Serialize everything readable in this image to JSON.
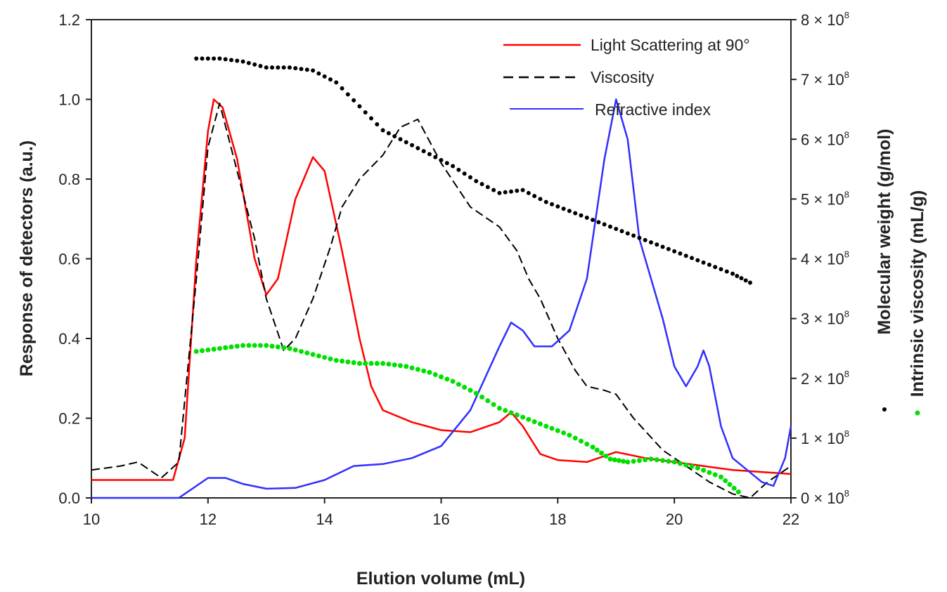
{
  "chart_data": {
    "type": "line",
    "xlabel": "Elution volume (mL)",
    "ylabel": "Response of detectors (a.u.)",
    "y2labels": [
      "Molecular weight (g/mol)",
      "Intrinsic viscosity (mL/g)"
    ],
    "xlim": [
      10,
      22
    ],
    "ylim": [
      0.0,
      1.2
    ],
    "y2lim": [
      0,
      8
    ],
    "xticks": [
      "10",
      "12",
      "14",
      "16",
      "18",
      "20",
      "22"
    ],
    "yticks": [
      "0.0",
      "0.2",
      "0.4",
      "0.6",
      "0.8",
      "1.0",
      "1.2"
    ],
    "y2ticks": [
      {
        "base": "0 × 10",
        "exp": "8"
      },
      {
        "base": "1 × 10",
        "exp": "8"
      },
      {
        "base": "2 × 10",
        "exp": "8"
      },
      {
        "base": "3 × 10",
        "exp": "8"
      },
      {
        "base": "4 × 10",
        "exp": "8"
      },
      {
        "base": "5 × 10",
        "exp": "8"
      },
      {
        "base": "6 × 10",
        "exp": "8"
      },
      {
        "base": "7 × 10",
        "exp": "8"
      },
      {
        "base": "8 × 10",
        "exp": "8"
      }
    ],
    "legend_position": "top-right",
    "grid": false,
    "series": [
      {
        "name": "Light Scattering at 90°",
        "color": "#ff0000",
        "style": "solid",
        "axis": "left",
        "points": [
          [
            10.0,
            0.045
          ],
          [
            11.4,
            0.045
          ],
          [
            11.6,
            0.15
          ],
          [
            11.8,
            0.6
          ],
          [
            12.0,
            0.92
          ],
          [
            12.1,
            1.0
          ],
          [
            12.25,
            0.98
          ],
          [
            12.5,
            0.85
          ],
          [
            12.8,
            0.6
          ],
          [
            13.0,
            0.51
          ],
          [
            13.2,
            0.55
          ],
          [
            13.5,
            0.75
          ],
          [
            13.8,
            0.855
          ],
          [
            14.0,
            0.82
          ],
          [
            14.3,
            0.62
          ],
          [
            14.6,
            0.4
          ],
          [
            14.8,
            0.28
          ],
          [
            15.0,
            0.22
          ],
          [
            15.5,
            0.19
          ],
          [
            16.0,
            0.17
          ],
          [
            16.5,
            0.165
          ],
          [
            17.0,
            0.19
          ],
          [
            17.2,
            0.215
          ],
          [
            17.4,
            0.18
          ],
          [
            17.7,
            0.11
          ],
          [
            18.0,
            0.095
          ],
          [
            18.5,
            0.09
          ],
          [
            19.0,
            0.115
          ],
          [
            19.5,
            0.1
          ],
          [
            20.0,
            0.09
          ],
          [
            21.0,
            0.07
          ],
          [
            22.0,
            0.06
          ]
        ]
      },
      {
        "name": "Viscosity",
        "color": "#000000",
        "style": "dashed",
        "axis": "left",
        "points": [
          [
            10.0,
            0.07
          ],
          [
            10.5,
            0.08
          ],
          [
            10.8,
            0.09
          ],
          [
            11.0,
            0.07
          ],
          [
            11.2,
            0.05
          ],
          [
            11.5,
            0.09
          ],
          [
            11.8,
            0.55
          ],
          [
            12.0,
            0.88
          ],
          [
            12.2,
            0.99
          ],
          [
            12.5,
            0.82
          ],
          [
            12.8,
            0.65
          ],
          [
            13.0,
            0.5
          ],
          [
            13.3,
            0.37
          ],
          [
            13.5,
            0.4
          ],
          [
            13.8,
            0.5
          ],
          [
            14.1,
            0.63
          ],
          [
            14.3,
            0.73
          ],
          [
            14.6,
            0.8
          ],
          [
            15.0,
            0.86
          ],
          [
            15.3,
            0.93
          ],
          [
            15.6,
            0.95
          ],
          [
            16.0,
            0.84
          ],
          [
            16.5,
            0.73
          ],
          [
            17.0,
            0.68
          ],
          [
            17.3,
            0.62
          ],
          [
            17.5,
            0.55
          ],
          [
            17.7,
            0.5
          ],
          [
            18.0,
            0.4
          ],
          [
            18.3,
            0.32
          ],
          [
            18.5,
            0.28
          ],
          [
            18.8,
            0.27
          ],
          [
            19.0,
            0.26
          ],
          [
            19.3,
            0.2
          ],
          [
            19.8,
            0.12
          ],
          [
            20.2,
            0.08
          ],
          [
            20.6,
            0.04
          ],
          [
            21.0,
            0.01
          ],
          [
            21.3,
            0.0
          ],
          [
            21.6,
            0.04
          ],
          [
            22.0,
            0.08
          ]
        ]
      },
      {
        "name": "Refractive index",
        "color": "#2f2fff",
        "style": "solid",
        "axis": "left",
        "points": [
          [
            10.0,
            0.0
          ],
          [
            11.5,
            0.0
          ],
          [
            11.8,
            0.03
          ],
          [
            12.0,
            0.05
          ],
          [
            12.3,
            0.05
          ],
          [
            12.6,
            0.035
          ],
          [
            13.0,
            0.023
          ],
          [
            13.5,
            0.025
          ],
          [
            14.0,
            0.045
          ],
          [
            14.5,
            0.08
          ],
          [
            15.0,
            0.085
          ],
          [
            15.5,
            0.1
          ],
          [
            16.0,
            0.13
          ],
          [
            16.5,
            0.22
          ],
          [
            17.0,
            0.38
          ],
          [
            17.2,
            0.44
          ],
          [
            17.4,
            0.42
          ],
          [
            17.6,
            0.38
          ],
          [
            17.9,
            0.38
          ],
          [
            18.2,
            0.42
          ],
          [
            18.5,
            0.55
          ],
          [
            18.8,
            0.85
          ],
          [
            19.0,
            1.0
          ],
          [
            19.2,
            0.9
          ],
          [
            19.4,
            0.65
          ],
          [
            19.6,
            0.55
          ],
          [
            19.8,
            0.45
          ],
          [
            20.0,
            0.33
          ],
          [
            20.2,
            0.28
          ],
          [
            20.4,
            0.33
          ],
          [
            20.5,
            0.37
          ],
          [
            20.6,
            0.33
          ],
          [
            20.8,
            0.18
          ],
          [
            21.0,
            0.1
          ],
          [
            21.5,
            0.04
          ],
          [
            21.7,
            0.03
          ],
          [
            21.9,
            0.1
          ],
          [
            22.0,
            0.18
          ]
        ]
      },
      {
        "name": "Molecular weight",
        "color": "#000000",
        "style": "dotted",
        "axis": "right",
        "points": [
          [
            11.8,
            7.35
          ],
          [
            12.2,
            7.35
          ],
          [
            12.6,
            7.3
          ],
          [
            13.0,
            7.2
          ],
          [
            13.4,
            7.2
          ],
          [
            13.8,
            7.15
          ],
          [
            14.2,
            6.95
          ],
          [
            14.6,
            6.55
          ],
          [
            15.0,
            6.15
          ],
          [
            15.4,
            5.95
          ],
          [
            15.8,
            5.75
          ],
          [
            16.2,
            5.55
          ],
          [
            16.6,
            5.3
          ],
          [
            17.0,
            5.1
          ],
          [
            17.4,
            5.15
          ],
          [
            17.8,
            4.95
          ],
          [
            18.2,
            4.8
          ],
          [
            18.6,
            4.65
          ],
          [
            19.0,
            4.5
          ],
          [
            19.4,
            4.35
          ],
          [
            19.8,
            4.2
          ],
          [
            20.2,
            4.05
          ],
          [
            20.6,
            3.9
          ],
          [
            21.0,
            3.75
          ],
          [
            21.3,
            3.6
          ]
        ]
      },
      {
        "name": "Intrinsic viscosity",
        "color": "#00e000",
        "style": "dotted",
        "axis": "right",
        "points": [
          [
            11.8,
            2.45
          ],
          [
            12.2,
            2.5
          ],
          [
            12.6,
            2.55
          ],
          [
            13.0,
            2.55
          ],
          [
            13.4,
            2.5
          ],
          [
            13.8,
            2.4
          ],
          [
            14.2,
            2.3
          ],
          [
            14.6,
            2.25
          ],
          [
            15.0,
            2.25
          ],
          [
            15.4,
            2.2
          ],
          [
            15.8,
            2.1
          ],
          [
            16.2,
            1.95
          ],
          [
            16.6,
            1.75
          ],
          [
            17.0,
            1.5
          ],
          [
            17.4,
            1.35
          ],
          [
            17.8,
            1.2
          ],
          [
            18.2,
            1.05
          ],
          [
            18.6,
            0.85
          ],
          [
            18.9,
            0.65
          ],
          [
            19.2,
            0.6
          ],
          [
            19.6,
            0.65
          ],
          [
            20.0,
            0.6
          ],
          [
            20.4,
            0.5
          ],
          [
            20.8,
            0.35
          ],
          [
            21.1,
            0.1
          ]
        ]
      }
    ]
  }
}
